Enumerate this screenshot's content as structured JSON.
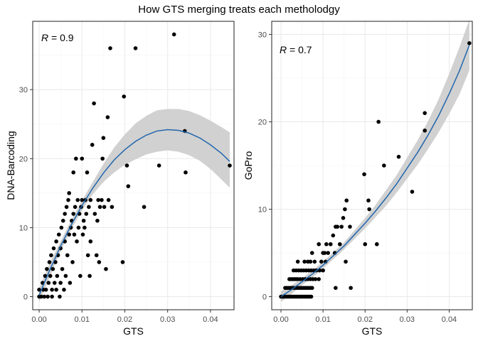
{
  "chart_data": {
    "title": "How GTS merging treats each metholodgy",
    "panels": [
      {
        "type": "scatter",
        "xlabel": "GTS",
        "ylabel": "DNA-Barcoding",
        "annotation_var": "R",
        "annotation_val": " = 0.9",
        "xlim": [
          -0.0015,
          0.0455
        ],
        "ylim": [
          -1.9,
          39.9
        ],
        "xticks": [
          0.0,
          0.01,
          0.02,
          0.03,
          0.04
        ],
        "xtick_labels": [
          "0.00",
          "0.01",
          "0.02",
          "0.03",
          "0.04"
        ],
        "yticks": [
          0,
          10,
          20,
          30
        ],
        "ytick_labels": [
          "0",
          "10",
          "20",
          "30"
        ],
        "grid": true,
        "points": [
          [
            0.0,
            0
          ],
          [
            0.0,
            1
          ],
          [
            0.0005,
            0
          ],
          [
            0.0008,
            2
          ],
          [
            0.001,
            1
          ],
          [
            0.0012,
            0
          ],
          [
            0.0014,
            3
          ],
          [
            0.0016,
            1
          ],
          [
            0.0018,
            4
          ],
          [
            0.002,
            0
          ],
          [
            0.0022,
            2
          ],
          [
            0.0024,
            5
          ],
          [
            0.0026,
            3
          ],
          [
            0.0028,
            6
          ],
          [
            0.003,
            1
          ],
          [
            0.003,
            0
          ],
          [
            0.0032,
            4
          ],
          [
            0.0034,
            7
          ],
          [
            0.0036,
            2
          ],
          [
            0.0038,
            5
          ],
          [
            0.004,
            8
          ],
          [
            0.004,
            1
          ],
          [
            0.0042,
            3
          ],
          [
            0.0044,
            6
          ],
          [
            0.0046,
            9
          ],
          [
            0.0048,
            0
          ],
          [
            0.005,
            2
          ],
          [
            0.005,
            7
          ],
          [
            0.0052,
            10
          ],
          [
            0.0054,
            4
          ],
          [
            0.0056,
            11
          ],
          [
            0.0058,
            1
          ],
          [
            0.006,
            8
          ],
          [
            0.006,
            12
          ],
          [
            0.0062,
            3
          ],
          [
            0.0064,
            13
          ],
          [
            0.0066,
            6
          ],
          [
            0.0068,
            14
          ],
          [
            0.007,
            9
          ],
          [
            0.007,
            15
          ],
          [
            0.0072,
            2
          ],
          [
            0.0074,
            10
          ],
          [
            0.0076,
            11
          ],
          [
            0.0078,
            5
          ],
          [
            0.008,
            12
          ],
          [
            0.008,
            18
          ],
          [
            0.0082,
            9
          ],
          [
            0.0084,
            13
          ],
          [
            0.0086,
            20
          ],
          [
            0.0088,
            8
          ],
          [
            0.009,
            14
          ],
          [
            0.0092,
            10
          ],
          [
            0.0094,
            12
          ],
          [
            0.0096,
            3
          ],
          [
            0.0098,
            13
          ],
          [
            0.01,
            14
          ],
          [
            0.01,
            20
          ],
          [
            0.0102,
            9
          ],
          [
            0.0104,
            11
          ],
          [
            0.0106,
            10
          ],
          [
            0.0108,
            14
          ],
          [
            0.011,
            12
          ],
          [
            0.0112,
            18
          ],
          [
            0.0114,
            6
          ],
          [
            0.0116,
            13
          ],
          [
            0.0118,
            3
          ],
          [
            0.012,
            14
          ],
          [
            0.012,
            8
          ],
          [
            0.0124,
            22
          ],
          [
            0.0128,
            28
          ],
          [
            0.013,
            12
          ],
          [
            0.0134,
            6
          ],
          [
            0.0136,
            11
          ],
          [
            0.0138,
            14
          ],
          [
            0.014,
            5
          ],
          [
            0.0142,
            13
          ],
          [
            0.0146,
            14
          ],
          [
            0.0148,
            20
          ],
          [
            0.015,
            23
          ],
          [
            0.0152,
            13
          ],
          [
            0.0156,
            4
          ],
          [
            0.016,
            26
          ],
          [
            0.0162,
            14
          ],
          [
            0.0166,
            36
          ],
          [
            0.017,
            13
          ],
          [
            0.0195,
            5
          ],
          [
            0.0198,
            29
          ],
          [
            0.0205,
            19
          ],
          [
            0.0208,
            16
          ],
          [
            0.0225,
            36
          ],
          [
            0.0245,
            13
          ],
          [
            0.028,
            19
          ],
          [
            0.0315,
            38
          ],
          [
            0.034,
            24
          ],
          [
            0.0342,
            18
          ],
          [
            0.0445,
            19
          ]
        ],
        "fit": {
          "x": [
            0.0,
            0.0025,
            0.005,
            0.0075,
            0.01,
            0.0125,
            0.015,
            0.0175,
            0.02,
            0.0225,
            0.025,
            0.0275,
            0.03,
            0.0325,
            0.035,
            0.0375,
            0.04,
            0.0425,
            0.0445
          ],
          "y": [
            0.2,
            3.9,
            7.3,
            10.4,
            13.2,
            15.7,
            17.9,
            19.8,
            21.3,
            22.5,
            23.4,
            24.0,
            24.2,
            24.1,
            23.7,
            23.0,
            22.0,
            20.8,
            19.6
          ],
          "lower": [
            -0.8,
            2.9,
            6.6,
            9.7,
            12.5,
            14.8,
            16.6,
            18.0,
            19.1,
            19.9,
            20.6,
            21.0,
            21.2,
            21.0,
            20.5,
            19.7,
            18.5,
            17.0,
            15.8
          ],
          "upper": [
            1.2,
            4.9,
            8.0,
            11.1,
            13.9,
            16.6,
            19.2,
            21.6,
            23.5,
            25.1,
            26.2,
            27.0,
            27.2,
            27.2,
            26.9,
            26.3,
            25.5,
            24.6,
            23.8
          ]
        }
      },
      {
        "type": "scatter",
        "xlabel": "GTS",
        "ylabel": "GoPro",
        "annotation_var": "R",
        "annotation_val": " = 0.7",
        "xlim": [
          -0.0022,
          0.0455
        ],
        "ylim": [
          -1.5,
          31.5
        ],
        "xticks": [
          0.0,
          0.01,
          0.02,
          0.03,
          0.04
        ],
        "xtick_labels": [
          "0.00",
          "0.01",
          "0.02",
          "0.03",
          "0.04"
        ],
        "yticks": [
          0,
          10,
          20,
          30
        ],
        "ytick_labels": [
          "0",
          "10",
          "20",
          "30"
        ],
        "grid": true,
        "points": [
          [
            0.0,
            0
          ],
          [
            0.0004,
            0
          ],
          [
            0.0008,
            0
          ],
          [
            0.0012,
            0
          ],
          [
            0.0016,
            0
          ],
          [
            0.002,
            0
          ],
          [
            0.0024,
            0
          ],
          [
            0.0028,
            0
          ],
          [
            0.0032,
            0
          ],
          [
            0.0036,
            0
          ],
          [
            0.004,
            0
          ],
          [
            0.0044,
            0
          ],
          [
            0.0048,
            0
          ],
          [
            0.0052,
            0
          ],
          [
            0.0056,
            0
          ],
          [
            0.006,
            0
          ],
          [
            0.0064,
            0
          ],
          [
            0.0068,
            0
          ],
          [
            0.0072,
            0
          ],
          [
            0.001,
            1
          ],
          [
            0.0014,
            1
          ],
          [
            0.0018,
            1
          ],
          [
            0.0022,
            1
          ],
          [
            0.0026,
            1
          ],
          [
            0.003,
            1
          ],
          [
            0.0034,
            1
          ],
          [
            0.0038,
            1
          ],
          [
            0.0042,
            1
          ],
          [
            0.0046,
            1
          ],
          [
            0.005,
            1
          ],
          [
            0.0054,
            1
          ],
          [
            0.0058,
            1
          ],
          [
            0.0062,
            1
          ],
          [
            0.0066,
            1
          ],
          [
            0.007,
            1
          ],
          [
            0.0074,
            1
          ],
          [
            0.002,
            2
          ],
          [
            0.0024,
            2
          ],
          [
            0.0028,
            2
          ],
          [
            0.0032,
            2
          ],
          [
            0.0036,
            2
          ],
          [
            0.004,
            2
          ],
          [
            0.0046,
            2
          ],
          [
            0.0052,
            2
          ],
          [
            0.0058,
            2
          ],
          [
            0.0064,
            2
          ],
          [
            0.007,
            2
          ],
          [
            0.0076,
            2
          ],
          [
            0.0082,
            2
          ],
          [
            0.009,
            2
          ],
          [
            0.003,
            3
          ],
          [
            0.0036,
            3
          ],
          [
            0.0042,
            3
          ],
          [
            0.0048,
            3
          ],
          [
            0.0054,
            3
          ],
          [
            0.006,
            3
          ],
          [
            0.0066,
            3
          ],
          [
            0.0072,
            3
          ],
          [
            0.0078,
            3
          ],
          [
            0.0084,
            3
          ],
          [
            0.0092,
            3
          ],
          [
            0.01,
            3
          ],
          [
            0.004,
            4
          ],
          [
            0.0056,
            4
          ],
          [
            0.0064,
            4
          ],
          [
            0.007,
            4
          ],
          [
            0.008,
            4
          ],
          [
            0.0096,
            4
          ],
          [
            0.0106,
            4
          ],
          [
            0.0074,
            5
          ],
          [
            0.01,
            5
          ],
          [
            0.0104,
            5
          ],
          [
            0.0112,
            5
          ],
          [
            0.0128,
            5
          ],
          [
            0.009,
            6
          ],
          [
            0.0108,
            6
          ],
          [
            0.0118,
            6
          ],
          [
            0.014,
            6
          ],
          [
            0.0124,
            7
          ],
          [
            0.013,
            8
          ],
          [
            0.0134,
            8
          ],
          [
            0.0144,
            8
          ],
          [
            0.0148,
            9
          ],
          [
            0.0152,
            10
          ],
          [
            0.0156,
            11
          ],
          [
            0.0164,
            8
          ],
          [
            0.013,
            1
          ],
          [
            0.0154,
            4
          ],
          [
            0.0166,
            1
          ],
          [
            0.0198,
            14
          ],
          [
            0.02,
            6
          ],
          [
            0.0208,
            11
          ],
          [
            0.021,
            10
          ],
          [
            0.0228,
            6
          ],
          [
            0.0232,
            20
          ],
          [
            0.0245,
            15
          ],
          [
            0.028,
            16
          ],
          [
            0.0312,
            12
          ],
          [
            0.0342,
            21
          ],
          [
            0.0342,
            19
          ],
          [
            0.0448,
            29
          ]
        ],
        "fit": {
          "x": [
            0.0,
            0.0025,
            0.005,
            0.0075,
            0.01,
            0.0125,
            0.015,
            0.0175,
            0.02,
            0.0225,
            0.025,
            0.0275,
            0.03,
            0.0325,
            0.035,
            0.0375,
            0.04,
            0.0425,
            0.0448
          ],
          "y": [
            0.0,
            0.8,
            1.7,
            2.6,
            3.6,
            4.7,
            5.8,
            7.1,
            8.4,
            9.8,
            11.3,
            12.9,
            14.7,
            16.5,
            18.5,
            20.7,
            23.2,
            25.9,
            28.8
          ],
          "lower": [
            -0.6,
            0.3,
            1.3,
            2.2,
            3.2,
            4.3,
            5.4,
            6.6,
            7.8,
            9.1,
            10.4,
            11.9,
            13.5,
            15.1,
            16.9,
            18.8,
            20.9,
            23.2,
            25.9
          ],
          "upper": [
            0.6,
            1.3,
            2.1,
            3.0,
            4.0,
            5.1,
            6.2,
            7.6,
            9.0,
            10.5,
            12.2,
            13.9,
            15.9,
            17.9,
            20.1,
            22.6,
            25.5,
            28.6,
            31.7
          ]
        }
      }
    ],
    "colors": {
      "panel_bg": "#ffffff",
      "grid_major": "#ebebeb",
      "grid_minor": "#f5f5f5",
      "border": "#333333",
      "point": "#000000",
      "fit_line": "#2166ac",
      "ribbon": "#cccccc",
      "tick_label": "#4d4d4d"
    }
  }
}
